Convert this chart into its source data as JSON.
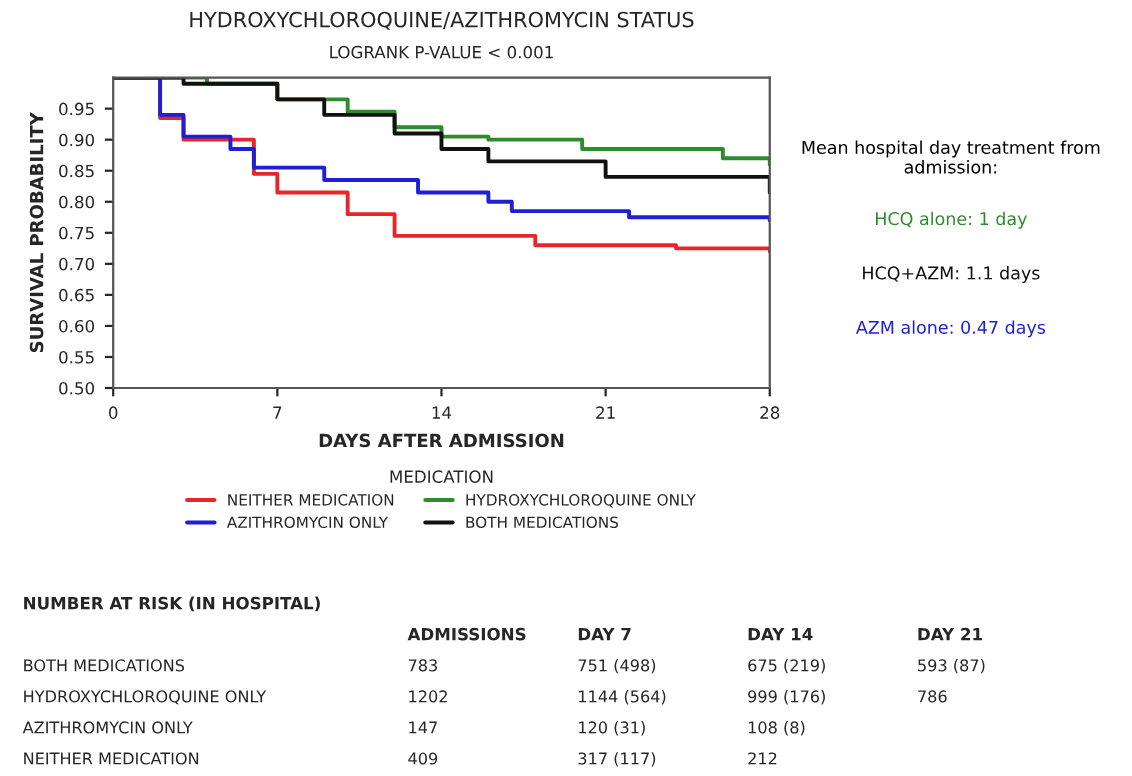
{
  "chart_data": {
    "type": "step",
    "title": "HYDROXYCHLOROQUINE/AZITHROMYCIN STATUS",
    "subtitle": "LOGRANK P-VALUE < 0.001",
    "xlabel": "DAYS AFTER ADMISSION",
    "ylabel": "SURVIVAL PROBABILITY",
    "legend_title": "MEDICATION",
    "legend": "bottom",
    "xlim": [
      0,
      28
    ],
    "xticks": [
      0,
      7,
      14,
      21,
      28
    ],
    "ylim": [
      0.5,
      1.0
    ],
    "yticks": [
      {
        "value": 0.5,
        "label": "0.50"
      },
      {
        "value": 0.55,
        "label": "0.55"
      },
      {
        "value": 0.6,
        "label": "0.60"
      },
      {
        "value": 0.65,
        "label": "0.65"
      },
      {
        "value": 0.7,
        "label": "0.70"
      },
      {
        "value": 0.75,
        "label": "0.75"
      },
      {
        "value": 0.8,
        "label": "0.80"
      },
      {
        "value": 0.85,
        "label": "0.85"
      },
      {
        "value": 0.9,
        "label": "0.90"
      },
      {
        "value": 0.95,
        "label": "0.95"
      }
    ],
    "grid": false,
    "series": [
      {
        "name": "NEITHER MEDICATION",
        "color": "#e8262a",
        "x": [
          0,
          2,
          3,
          6,
          7,
          10,
          12,
          18,
          24,
          28
        ],
        "values": [
          1.0,
          0.935,
          0.9,
          0.845,
          0.815,
          0.78,
          0.745,
          0.73,
          0.725,
          0.72
        ]
      },
      {
        "name": "AZITHROMYCIN ONLY",
        "color": "#1f1fd6",
        "x": [
          0,
          2,
          3,
          5,
          6,
          9,
          13,
          16,
          17,
          22,
          28
        ],
        "values": [
          1.0,
          0.94,
          0.905,
          0.885,
          0.855,
          0.835,
          0.815,
          0.8,
          0.785,
          0.775,
          0.77
        ]
      },
      {
        "name": "HYDROXYCHLOROQUINE ONLY",
        "color": "#2e8b2e",
        "x": [
          0,
          4,
          7,
          10,
          12,
          14,
          16,
          20,
          26,
          28
        ],
        "values": [
          1.0,
          0.99,
          0.965,
          0.945,
          0.92,
          0.905,
          0.9,
          0.885,
          0.87,
          0.86
        ]
      },
      {
        "name": "BOTH MEDICATIONS",
        "color": "#111111",
        "x": [
          0,
          3,
          7,
          9,
          12,
          14,
          16,
          21,
          28
        ],
        "values": [
          1.0,
          0.99,
          0.965,
          0.94,
          0.91,
          0.885,
          0.865,
          0.84,
          0.815
        ]
      }
    ],
    "annotations": [
      "Mean hospital day treatment from admission:",
      "HCQ alone: 1 day",
      "HCQ+AZM: 1.1 days",
      "AZM alone: 0.47 days",
      "NUMBER AT RISK (IN HOSPITAL)",
      "BOTH MEDICATIONS",
      "HYDROXYCHLOROQUINE ONLY",
      "AZITHROMYCIN ONLY",
      "NEITHER MEDICATION",
      "ADMISSIONS",
      "783",
      "1202",
      "147",
      "409",
      "DAY 7",
      "751 (498)",
      "1144 (564)",
      "120 (31)",
      "317 (117)",
      "DAY 14",
      "675 (219)",
      "999 (176)",
      "108 (8)",
      "212",
      "DAY 21",
      "593 (87)",
      "786"
    ]
  }
}
